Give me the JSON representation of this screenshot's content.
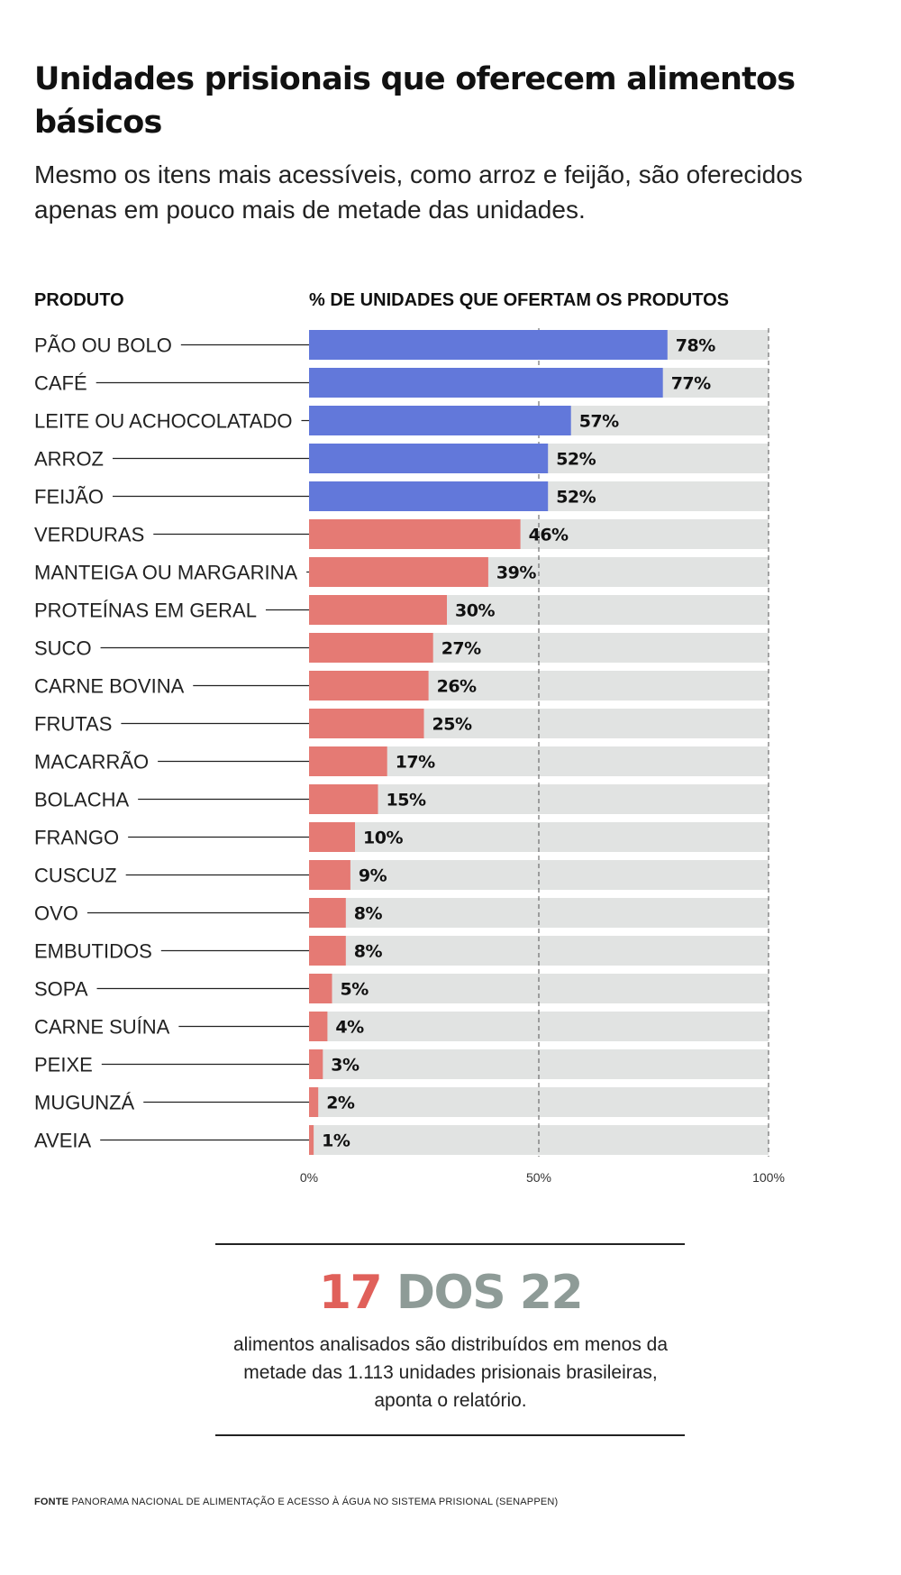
{
  "title": "Unidades prisionais que oferecem alimentos básicos",
  "subtitle": "Mesmo os itens mais acessíveis, como arroz e feijão, são oferecidos apenas em pouco mais de metade das unidades.",
  "colors": {
    "highlight": "#6278da",
    "other": "#e57a74",
    "track": "#e1e3e2",
    "stat_red": "#e0605a",
    "stat_grey": "#8e9b97"
  },
  "chart_data": {
    "type": "bar",
    "orientation": "horizontal",
    "category_header": "PRODUTO",
    "value_header": "% DE UNIDADES QUE OFERTAM OS PRODUTOS",
    "categories": [
      "PÃO OU BOLO",
      "CAFÉ",
      "LEITE OU ACHOCOLATADO",
      "ARROZ",
      "FEIJÃO",
      "VERDURAS",
      "MANTEIGA OU MARGARINA",
      "PROTEÍNAS EM GERAL",
      "SUCO",
      "CARNE BOVINA",
      "FRUTAS",
      "MACARRÃO",
      "BOLACHA",
      "FRANGO",
      "CUSCUZ",
      "OVO",
      "EMBUTIDOS",
      "SOPA",
      "CARNE SUÍNA",
      "PEIXE",
      "MUGUNZÁ",
      "AVEIA"
    ],
    "values": [
      78,
      77,
      57,
      52,
      52,
      46,
      39,
      30,
      27,
      26,
      25,
      17,
      15,
      10,
      9,
      8,
      8,
      5,
      4,
      3,
      2,
      1
    ],
    "value_labels": [
      "78%",
      "77%",
      "57%",
      "52%",
      "52%",
      "46%",
      "39%",
      "30%",
      "27%",
      "26%",
      "25%",
      "17%",
      "15%",
      "10%",
      "9%",
      "8%",
      "8%",
      "5%",
      "4%",
      "3%",
      "2%",
      "1%"
    ],
    "highlighted_count": 5,
    "xlim": [
      0,
      100
    ],
    "x_ticks": [
      0,
      50,
      100
    ],
    "x_tick_labels": [
      "0%",
      "50%",
      "100%"
    ],
    "gridlines": "dashed at 50% and 100%"
  },
  "highlight": {
    "number_red": "17",
    "number_grey": "DOS 22",
    "description": "alimentos analisados são distribuídos em menos da metade das 1.113 unidades prisionais brasileiras, aponta o relatório."
  },
  "source": {
    "label": "FONTE",
    "text": "PANORAMA NACIONAL DE ALIMENTAÇÃO E ACESSO À ÁGUA NO SISTEMA PRISIONAL (SENAPPEN)"
  }
}
